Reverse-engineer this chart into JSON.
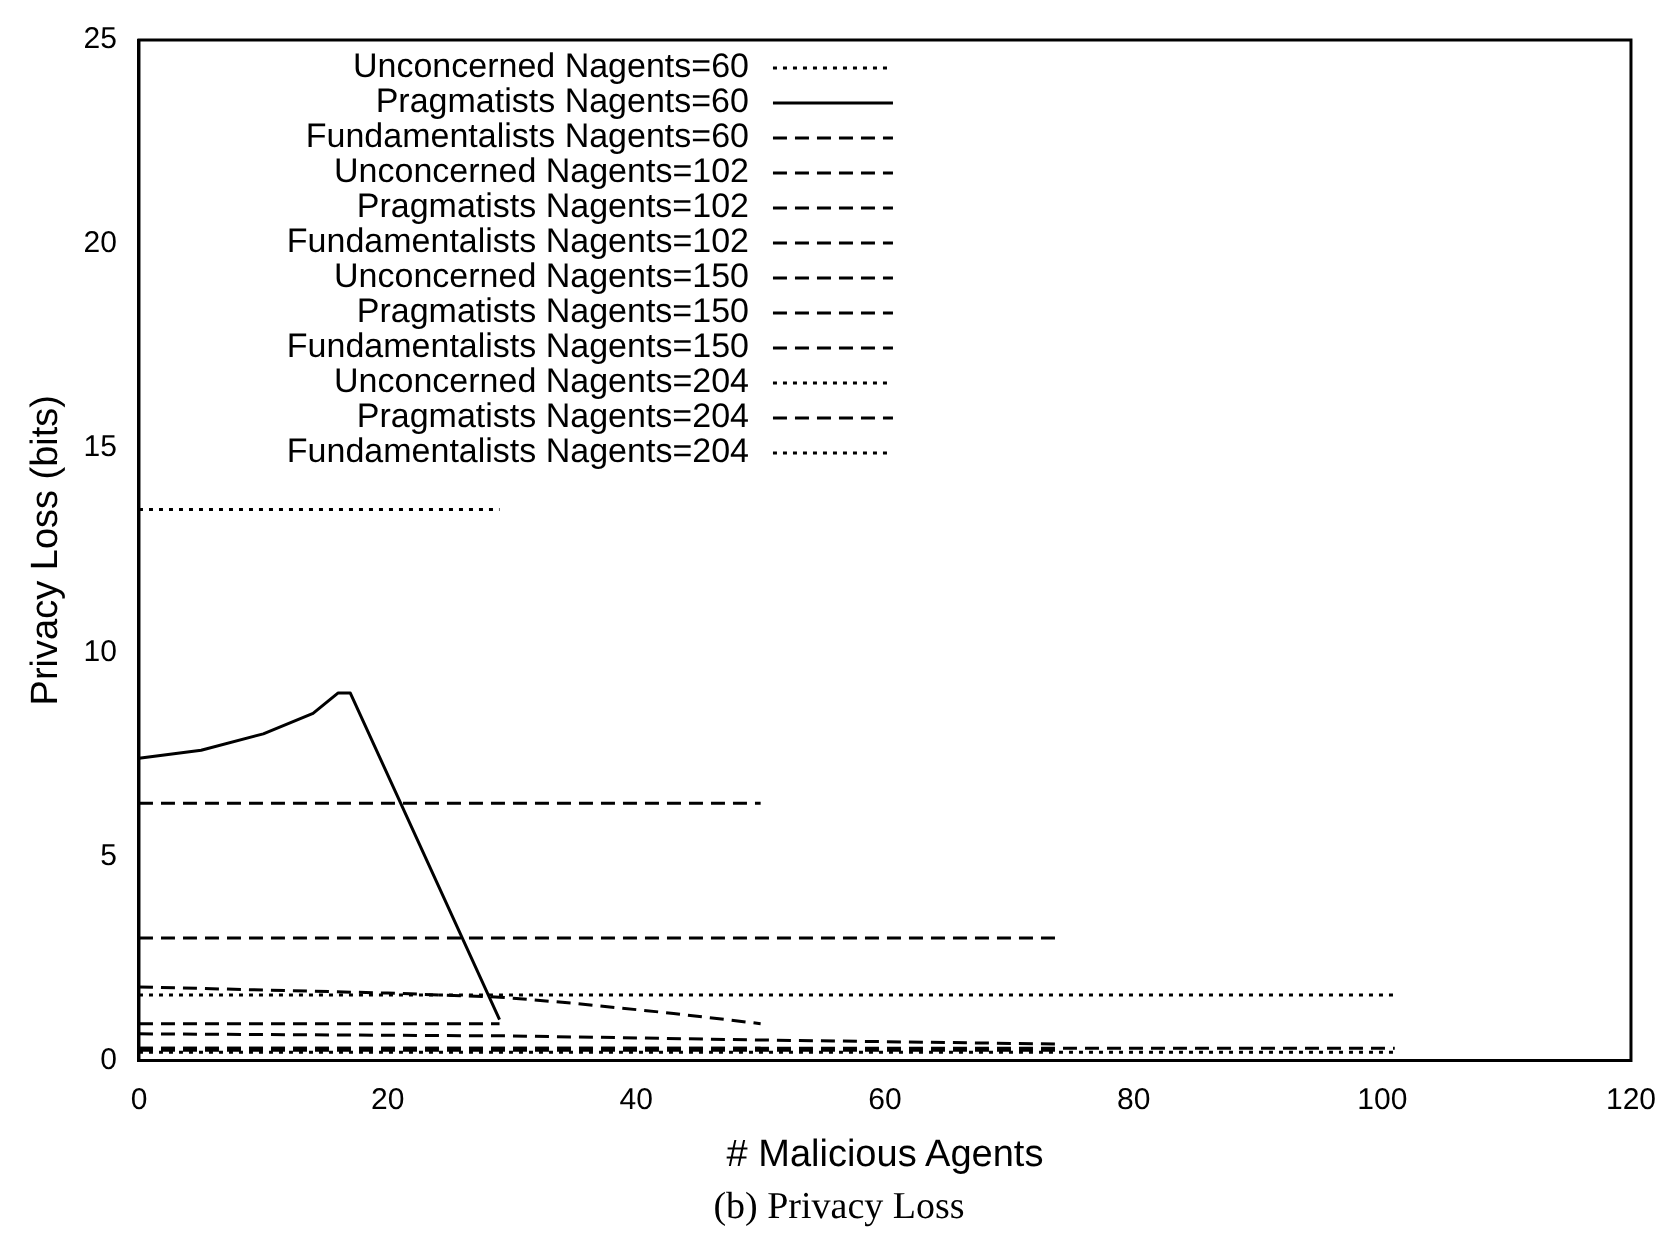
{
  "chart_data": {
    "type": "line",
    "xlabel": "# Malicious Agents",
    "ylabel": "Privacy Loss (bits)",
    "annotations": [
      "(b) Privacy Loss"
    ],
    "xlim": [
      0,
      120
    ],
    "xticks": [
      0,
      20,
      40,
      60,
      80,
      100,
      120
    ],
    "ylim": [
      0,
      25
    ],
    "yticks": [
      0,
      5,
      10,
      15,
      20,
      25
    ],
    "grid": false,
    "legend": "top left",
    "marker": "none",
    "series": [
      {
        "name": "Unconcerned Nagents=60",
        "color": "#000000",
        "line_style": "dotted",
        "x": [
          0,
          29
        ],
        "values": [
          13.5,
          13.5
        ]
      },
      {
        "name": "Pragmatists Nagents=60",
        "color": "#000000",
        "line_style": "solid",
        "x": [
          0,
          5,
          10,
          14,
          16,
          17,
          29
        ],
        "values": [
          7.4,
          7.6,
          8.0,
          8.5,
          9.0,
          9.0,
          1.0
        ]
      },
      {
        "name": "Fundamentalists Nagents=60",
        "color": "#000000",
        "line_style": "dashed",
        "x": [
          0,
          29
        ],
        "values": [
          0.9,
          0.9
        ]
      },
      {
        "name": "Unconcerned Nagents=102",
        "color": "#000000",
        "line_style": "dashed",
        "x": [
          0,
          50
        ],
        "values": [
          6.3,
          6.3
        ]
      },
      {
        "name": "Pragmatists Nagents=102",
        "color": "#000000",
        "line_style": "dashed",
        "x": [
          0,
          20,
          29,
          35,
          43,
          50
        ],
        "values": [
          1.8,
          1.65,
          1.55,
          1.4,
          1.15,
          0.9
        ]
      },
      {
        "name": "Fundamentalists Nagents=102",
        "color": "#000000",
        "line_style": "dashed",
        "x": [
          0,
          50
        ],
        "values": [
          0.3,
          0.3
        ]
      },
      {
        "name": "Unconcerned Nagents=150",
        "color": "#000000",
        "line_style": "dashed",
        "x": [
          0,
          74
        ],
        "values": [
          3.0,
          3.0
        ]
      },
      {
        "name": "Pragmatists Nagents=150",
        "color": "#000000",
        "line_style": "dashed",
        "x": [
          0,
          30,
          50,
          74
        ],
        "values": [
          0.65,
          0.6,
          0.5,
          0.4
        ]
      },
      {
        "name": "Fundamentalists Nagents=150",
        "color": "#000000",
        "line_style": "dashed",
        "x": [
          0,
          74
        ],
        "values": [
          0.25,
          0.25
        ]
      },
      {
        "name": "Unconcerned Nagents=204",
        "color": "#000000",
        "line_style": "dotted",
        "x": [
          0,
          101
        ],
        "values": [
          1.6,
          1.6
        ]
      },
      {
        "name": "Pragmatists Nagents=204",
        "color": "#000000",
        "line_style": "dashed",
        "x": [
          0,
          101
        ],
        "values": [
          0.3,
          0.3
        ]
      },
      {
        "name": "Fundamentalists Nagents=204",
        "color": "#000000",
        "line_style": "dotted",
        "x": [
          0,
          101
        ],
        "values": [
          0.2,
          0.2
        ]
      }
    ]
  }
}
